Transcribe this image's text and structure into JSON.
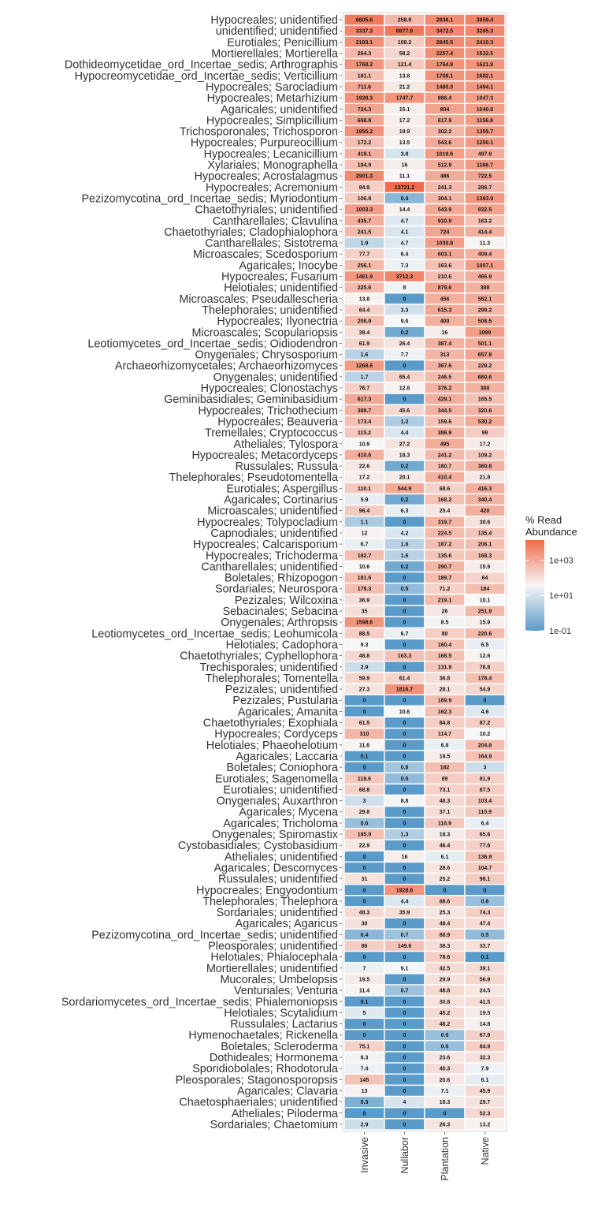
{
  "chart_data": {
    "type": "heatmap",
    "color_scale": {
      "type": "log10",
      "min": 0.1,
      "mid": 10,
      "max": 13721.2,
      "low_color": "#5b9bc9",
      "mid_color": "#f7f7f7",
      "high_color": "#ef6c4a"
    },
    "legend": {
      "title": [
        "% Read",
        "Abundance"
      ],
      "ticks": [
        "1e+03",
        "1e+01",
        "1e-01"
      ],
      "tick_values": [
        1000,
        10,
        0.1
      ],
      "position": "right"
    },
    "columns": [
      "Invasive",
      "Nullabor",
      "Plantation",
      "Native"
    ],
    "rows": [
      {
        "label": "Hypocreales; unidentified",
        "values": [
          "6605.6",
          "258.9",
          "2836.1",
          "3959.4"
        ]
      },
      {
        "label": "unidentified; unidentified",
        "values": [
          "3337.3",
          "6877.9",
          "3472.5",
          "3295.3"
        ]
      },
      {
        "label": "Eurotiales; Penicillium",
        "values": [
          "2183.1",
          "108.2",
          "2845.5",
          "2410.3"
        ]
      },
      {
        "label": "Mortierellales; Mortierella",
        "values": [
          "264.3",
          "58.2",
          "2257.4",
          "1532.5"
        ]
      },
      {
        "label": "Dothideomycetidae_ord_Incertae_sedis; Arthrographis",
        "values": [
          "1768.2",
          "121.4",
          "1764.8",
          "1621.9"
        ]
      },
      {
        "label": "Hypocreomycetidae_ord_Incertae_sedis; Verticillium",
        "values": [
          "181.1",
          "13.8",
          "1708.1",
          "1682.1"
        ]
      },
      {
        "label": "Hypocreales; Sarocladium",
        "values": [
          "711.6",
          "21.2",
          "1480.3",
          "1494.1"
        ]
      },
      {
        "label": "Hypocreales; Metarhizium",
        "values": [
          "1928.3",
          "1747.7",
          "886.4",
          "1047.3"
        ]
      },
      {
        "label": "Agaricales; unidentified",
        "values": [
          "724.3",
          "15.1",
          "804",
          "1040.8"
        ]
      },
      {
        "label": "Hypocreales; Simplicillium",
        "values": [
          "658.8",
          "17.2",
          "617.9",
          "1156.8"
        ]
      },
      {
        "label": "Trichosporonales; Trichosporon",
        "values": [
          "1955.2",
          "19.9",
          "302.2",
          "1355.7"
        ]
      },
      {
        "label": "Hypocreales; Purpureocillium",
        "values": [
          "172.2",
          "13.5",
          "543.6",
          "1250.1"
        ]
      },
      {
        "label": "Hypocreales; Lecanicillium",
        "values": [
          "419.1",
          "3.8",
          "1019.6",
          "487.9"
        ]
      },
      {
        "label": "Xylariales; Monographella",
        "values": [
          "194.9",
          "16",
          "512.9",
          "1168.7"
        ]
      },
      {
        "label": "Hypocreales; Acrostalagmus",
        "values": [
          "2901.3",
          "11.1",
          "486",
          "722.5"
        ]
      },
      {
        "label": "Hypocreales; Acremonium",
        "values": [
          "84.9",
          "13721.2",
          "241.3",
          "286.7"
        ]
      },
      {
        "label": "Pezizomycotina_ord_Incertae_sedis; Myriodontium",
        "values": [
          "106.8",
          "0.4",
          "304.1",
          "1383.9"
        ]
      },
      {
        "label": "Chaetothyriales; unidentified",
        "values": [
          "1003.3",
          "14.4",
          "543.9",
          "832.5"
        ]
      },
      {
        "label": "Cantharellales; Clavulina",
        "values": [
          "435.7",
          "4.7",
          "910.9",
          "163.2"
        ]
      },
      {
        "label": "Chaetothyriales; Cladophialophora",
        "values": [
          "241.5",
          "4.1",
          "724",
          "414.4"
        ]
      },
      {
        "label": "Cantharellales; Sistotrema",
        "values": [
          "1.9",
          "4.7",
          "1030.8",
          "11.3"
        ]
      },
      {
        "label": "Microascales; Scedosporium",
        "values": [
          "77.7",
          "6.4",
          "603.1",
          "409.4"
        ]
      },
      {
        "label": "Agaricales; Inocybe",
        "values": [
          "256.1",
          "7.3",
          "163.6",
          "1007.1"
        ]
      },
      {
        "label": "Hypocreales; Fusarium",
        "values": [
          "1461.9",
          "3712.3",
          "210.6",
          "466.9"
        ]
      },
      {
        "label": "Helotiales; unidentified",
        "values": [
          "225.6",
          "8",
          "879.6",
          "388"
        ]
      },
      {
        "label": "Microascales; Pseudallescheria",
        "values": [
          "13.8",
          "0",
          "456",
          "552.1"
        ]
      },
      {
        "label": "Thelephorales; unidentified",
        "values": [
          "64.4",
          "3.3",
          "615.3",
          "299.2"
        ]
      },
      {
        "label": "Hypocreales; Ilyonectria",
        "values": [
          "206.9",
          "9.6",
          "400",
          "506.5"
        ]
      },
      {
        "label": "Microascales; Scopulariopsis",
        "values": [
          "38.4",
          "0.2",
          "16",
          "1089"
        ]
      },
      {
        "label": "Leotiomycetes_ord_Incertae_sedis; Oidiodendron",
        "values": [
          "61.9",
          "26.4",
          "387.4",
          "501.1"
        ]
      },
      {
        "label": "Onygenales; Chrysosporium",
        "values": [
          "1.6",
          "7.7",
          "313",
          "657.8"
        ]
      },
      {
        "label": "Archaeorhizomycetales; Archaeorhizomyces",
        "values": [
          "1268.6",
          "0",
          "367.6",
          "229.2"
        ]
      },
      {
        "label": "Onygenales; unidentified",
        "values": [
          "1.7",
          "65.4",
          "246.5",
          "660.6"
        ]
      },
      {
        "label": "Hypocreales; Clonostachys",
        "values": [
          "76.7",
          "12.8",
          "376.2",
          "388"
        ]
      },
      {
        "label": "Geminibasidiales; Geminibasidium",
        "values": [
          "617.3",
          "0",
          "429.1",
          "165.5"
        ]
      },
      {
        "label": "Hypocreales; Trichothecium",
        "values": [
          "388.7",
          "45.6",
          "344.5",
          "320.6"
        ]
      },
      {
        "label": "Hypocreales; Beauveria",
        "values": [
          "173.4",
          "1.2",
          "159.6",
          "530.2"
        ]
      },
      {
        "label": "Tremellales; Cryptococcus",
        "values": [
          "115.2",
          "4.4",
          "386.9",
          "99"
        ]
      },
      {
        "label": "Atheliales; Tylospora",
        "values": [
          "10.9",
          "27.2",
          "495",
          "17.2"
        ]
      },
      {
        "label": "Hypocreales; Metacordyceps",
        "values": [
          "410.6",
          "18.3",
          "241.2",
          "109.2"
        ]
      },
      {
        "label": "Russulales; Russula",
        "values": [
          "22.6",
          "0.2",
          "180.7",
          "360.8"
        ]
      },
      {
        "label": "Thelephorales; Pseudotomentella",
        "values": [
          "17.2",
          "20.1",
          "410.4",
          "21.8"
        ]
      },
      {
        "label": "Eurotiales; Aspergillus",
        "values": [
          "110.1",
          "544.9",
          "68.6",
          "416.3"
        ]
      },
      {
        "label": "Agaricales; Cortinarius",
        "values": [
          "5.9",
          "0.2",
          "168.2",
          "340.4"
        ]
      },
      {
        "label": "Microascales; unidentified",
        "values": [
          "96.4",
          "6.3",
          "25.4",
          "420"
        ]
      },
      {
        "label": "Hypocreales; Tolypocladium",
        "values": [
          "1.1",
          "0",
          "319.7",
          "30.6"
        ]
      },
      {
        "label": "Capnodiales; unidentified",
        "values": [
          "12",
          "4.2",
          "224.5",
          "135.4"
        ]
      },
      {
        "label": "Hypocreales; Calcarisporium",
        "values": [
          "6.7",
          "1.6",
          "187.2",
          "206.1"
        ]
      },
      {
        "label": "Hypocreales; Trichoderma",
        "values": [
          "182.7",
          "1.6",
          "135.6",
          "168.3"
        ]
      },
      {
        "label": "Cantharellales; unidentified",
        "values": [
          "10.6",
          "0.2",
          "290.7",
          "15.9"
        ]
      },
      {
        "label": "Boletales; Rhizopogon",
        "values": [
          "181.6",
          "0",
          "189.7",
          "64"
        ]
      },
      {
        "label": "Sordariales; Neurospora",
        "values": [
          "179.3",
          "0.5",
          "71.2",
          "184"
        ]
      },
      {
        "label": "Pezizales; Wilcoxina",
        "values": [
          "36.9",
          "0",
          "219.1",
          "10.1"
        ]
      },
      {
        "label": "Sebacinales; Sebacina",
        "values": [
          "35",
          "0",
          "26",
          "251.9"
        ]
      },
      {
        "label": "Onygenales; Arthropsis",
        "values": [
          "1598.6",
          "0",
          "8.5",
          "15.9"
        ]
      },
      {
        "label": "Leotiomycetes_ord_Incertae_sedis; Leohumicola",
        "values": [
          "88.5",
          "6.7",
          "80",
          "220.6"
        ]
      },
      {
        "label": "Helotiales; Cadophora",
        "values": [
          "9.3",
          "0",
          "160.4",
          "6.5"
        ]
      },
      {
        "label": "Chaetothyriales; Cyphellophora",
        "values": [
          "48.8",
          "163.3",
          "168.5",
          "12.6"
        ]
      },
      {
        "label": "Trechisporales; unidentified",
        "values": [
          "2.9",
          "0",
          "131.9",
          "76.8"
        ]
      },
      {
        "label": "Thelephorales; Tomentella",
        "values": [
          "59.9",
          "61.4",
          "36.8",
          "178.4"
        ]
      },
      {
        "label": "Pezizales; unidentified",
        "values": [
          "27.3",
          "1816.7",
          "28.1",
          "54.9"
        ]
      },
      {
        "label": "Pezizales; Pustularia",
        "values": [
          "0",
          "0",
          "189.9",
          "0"
        ]
      },
      {
        "label": "Agaricales; Amanita",
        "values": [
          "0",
          "10.6",
          "162.3",
          "4.6"
        ]
      },
      {
        "label": "Chaetothyriales; Exophiala",
        "values": [
          "61.5",
          "0",
          "84.8",
          "87.2"
        ]
      },
      {
        "label": "Hypocreales; Cordyceps",
        "values": [
          "310",
          "0",
          "114.7",
          "10.2"
        ]
      },
      {
        "label": "Helotiales; Phaeohelotium",
        "values": [
          "11.6",
          "0",
          "6.8",
          "204.8"
        ]
      },
      {
        "label": "Agaricales; Laccaria",
        "values": [
          "0.1",
          "0",
          "18.5",
          "164.9"
        ]
      },
      {
        "label": "Boletales; Coniophora",
        "values": [
          "0",
          "0.8",
          "182",
          "3"
        ]
      },
      {
        "label": "Eurotiales; Sagenomella",
        "values": [
          "118.6",
          "0.5",
          "89",
          "81.9"
        ]
      },
      {
        "label": "Eurotiales; unidentified",
        "values": [
          "68.8",
          "0",
          "73.1",
          "87.5"
        ]
      },
      {
        "label": "Onygenales; Auxarthron",
        "values": [
          "3",
          "8.8",
          "48.3",
          "103.4"
        ]
      },
      {
        "label": "Agaricales; Mycena",
        "values": [
          "29.8",
          "0",
          "37.1",
          "110.9"
        ]
      },
      {
        "label": "Agaricales; Tricholoma",
        "values": [
          "0.6",
          "0",
          "118.9",
          "6.4"
        ]
      },
      {
        "label": "Onygenales; Spiromastix",
        "values": [
          "195.9",
          "1.3",
          "18.3",
          "65.6"
        ]
      },
      {
        "label": "Cystobasidiales; Cystobasidium",
        "values": [
          "22.9",
          "0",
          "46.4",
          "77.6"
        ]
      },
      {
        "label": "Atheliales; unidentified",
        "values": [
          "0",
          "16",
          "6.1",
          "136.9"
        ]
      },
      {
        "label": "Agaricales; Descomyces",
        "values": [
          "0",
          "0",
          "28.6",
          "104.7"
        ]
      },
      {
        "label": "Russulales; unidentified",
        "values": [
          "31",
          "0",
          "25.2",
          "98.1"
        ]
      },
      {
        "label": "Hypocreales; Engyodontium",
        "values": [
          "0",
          "1928.6",
          "0",
          "0"
        ]
      },
      {
        "label": "Thelephorales; Thelephora",
        "values": [
          "0",
          "4.4",
          "88.6",
          "0.6"
        ]
      },
      {
        "label": "Sordariales; unidentified",
        "values": [
          "48.3",
          "35.9",
          "25.3",
          "74.3"
        ]
      },
      {
        "label": "Agaricales; Agaricus",
        "values": [
          "30",
          "0",
          "48.4",
          "47.4"
        ]
      },
      {
        "label": "Pezizomycotina_ord_Incertae_sedis; unidentified",
        "values": [
          "0.4",
          "0.7",
          "88.9",
          "0.5"
        ]
      },
      {
        "label": "Pleosporales; unidentified",
        "values": [
          "86",
          "149.6",
          "38.3",
          "33.7"
        ]
      },
      {
        "label": "Helotiales; Phialocephala",
        "values": [
          "0",
          "0",
          "78.6",
          "0.1"
        ]
      },
      {
        "label": "Mortierellales; unidentified",
        "values": [
          "7",
          "9.1",
          "42.5",
          "39.1"
        ]
      },
      {
        "label": "Mucorales; Umbelopsis",
        "values": [
          "19.5",
          "0",
          "29.9",
          "56.9"
        ]
      },
      {
        "label": "Venturiales; Venturia",
        "values": [
          "11.4",
          "0.7",
          "48.8",
          "24.5"
        ]
      },
      {
        "label": "Sordariomycetes_ord_Incertae_sedis; Phialemoniopsis",
        "values": [
          "0.1",
          "0",
          "30.8",
          "41.5"
        ]
      },
      {
        "label": "Helotiales; Scytalidium",
        "values": [
          "5",
          "0",
          "45.2",
          "19.5"
        ]
      },
      {
        "label": "Russulales; Lactarius",
        "values": [
          "0",
          "0",
          "48.2",
          "14.8"
        ]
      },
      {
        "label": "Hymenochaetales; Rickenella",
        "values": [
          "0",
          "0",
          "0.6",
          "67.8"
        ]
      },
      {
        "label": "Boletales; Scleroderma",
        "values": [
          "75.1",
          "0",
          "0.6",
          "84.9"
        ]
      },
      {
        "label": "Dothideales; Hormonema",
        "values": [
          "8.3",
          "0",
          "23.6",
          "32.3"
        ]
      },
      {
        "label": "Sporidiobolales; Rhodotorula",
        "values": [
          "7.4",
          "0",
          "40.3",
          "7.9"
        ]
      },
      {
        "label": "Pleosporales; Stagonosporopsis",
        "values": [
          "145",
          "0",
          "20.6",
          "6.1"
        ]
      },
      {
        "label": "Agaricales; Clavaria",
        "values": [
          "13",
          "0",
          "7.1",
          "45.9"
        ]
      },
      {
        "label": "Chaetosphaeriales; unidentified",
        "values": [
          "0.3",
          "4",
          "18.3",
          "29.7"
        ]
      },
      {
        "label": "Atheliales; Piloderma",
        "values": [
          "0",
          "0",
          "0",
          "52.3"
        ]
      },
      {
        "label": "Sordariales; Chaetomium",
        "values": [
          "2.9",
          "0",
          "26.3",
          "13.2"
        ]
      }
    ]
  }
}
